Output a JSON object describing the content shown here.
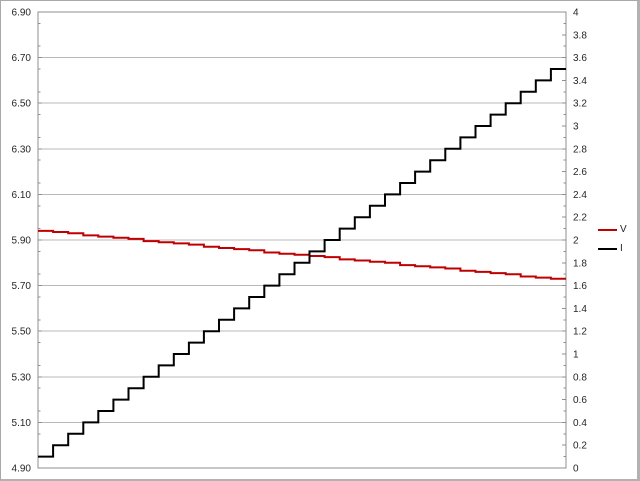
{
  "chart_data": {
    "type": "line",
    "title": "",
    "description": "Dual-axis step chart: voltage series V (left axis) slowly decreasing while current series I (right axis) steps up from 0.1 to 3.5",
    "grid": "horizontal gridlines at left-axis major ticks only",
    "legend_position": "right-middle",
    "x_axis": {
      "label": "",
      "tick_labels": []
    },
    "left_axis": {
      "label": "",
      "min": 4.9,
      "max": 6.9,
      "major_step": 0.2,
      "minor_step": 0.05,
      "tick_values": [
        6.9,
        6.7,
        6.5,
        6.3,
        6.1,
        5.9,
        5.7,
        5.5,
        5.3,
        5.1,
        4.9
      ],
      "tick_labels": [
        "6.90",
        "6.70",
        "6.50",
        "6.30",
        "6.10",
        "5.90",
        "5.70",
        "5.50",
        "5.30",
        "5.10",
        "4.90"
      ]
    },
    "right_axis": {
      "label": "",
      "min": 0,
      "max": 4,
      "major_step": 0.2,
      "minor_step": 0.1,
      "tick_values": [
        4,
        3.8,
        3.6,
        3.4,
        3.2,
        3,
        2.8,
        2.6,
        2.4,
        2.2,
        2,
        1.8,
        1.6,
        1.4,
        1.2,
        1,
        0.8,
        0.6,
        0.4,
        0.2,
        0
      ],
      "tick_labels": [
        "4",
        "3.8",
        "3.6",
        "3.4",
        "3.2",
        "3",
        "2.8",
        "2.6",
        "2.4",
        "2.2",
        "2",
        "1.8",
        "1.6",
        "1.4",
        "1.2",
        "1",
        "0.8",
        "0.6",
        "0.4",
        "0.2",
        "0"
      ]
    },
    "series": [
      {
        "name": "V",
        "axis": "left",
        "color": "#c00000",
        "style": "step",
        "quantize": 0.005,
        "values": [
          5.94,
          5.934,
          5.928,
          5.921,
          5.915,
          5.909,
          5.903,
          5.897,
          5.891,
          5.884,
          5.878,
          5.872,
          5.866,
          5.86,
          5.854,
          5.847,
          5.841,
          5.835,
          5.829,
          5.823,
          5.816,
          5.81,
          5.804,
          5.798,
          5.792,
          5.786,
          5.779,
          5.773,
          5.767,
          5.761,
          5.755,
          5.748,
          5.742,
          5.736,
          5.73
        ]
      },
      {
        "name": "I",
        "axis": "right",
        "color": "#000000",
        "style": "step",
        "values": [
          0.1,
          0.2,
          0.3,
          0.4,
          0.5,
          0.6,
          0.7,
          0.8,
          0.9,
          1.0,
          1.1,
          1.2,
          1.3,
          1.4,
          1.5,
          1.6,
          1.7,
          1.8,
          1.9,
          2.0,
          2.1,
          2.2,
          2.3,
          2.4,
          2.5,
          2.6,
          2.7,
          2.8,
          2.9,
          3.0,
          3.1,
          3.2,
          3.3,
          3.4,
          3.5
        ]
      }
    ],
    "colors": {
      "gridline": "#b8b8b8",
      "frame": "#8f8f8f",
      "tick": "#8f8f8f",
      "text": "#262626",
      "background": "#ffffff",
      "outer_border": "#a8a8a8"
    }
  }
}
